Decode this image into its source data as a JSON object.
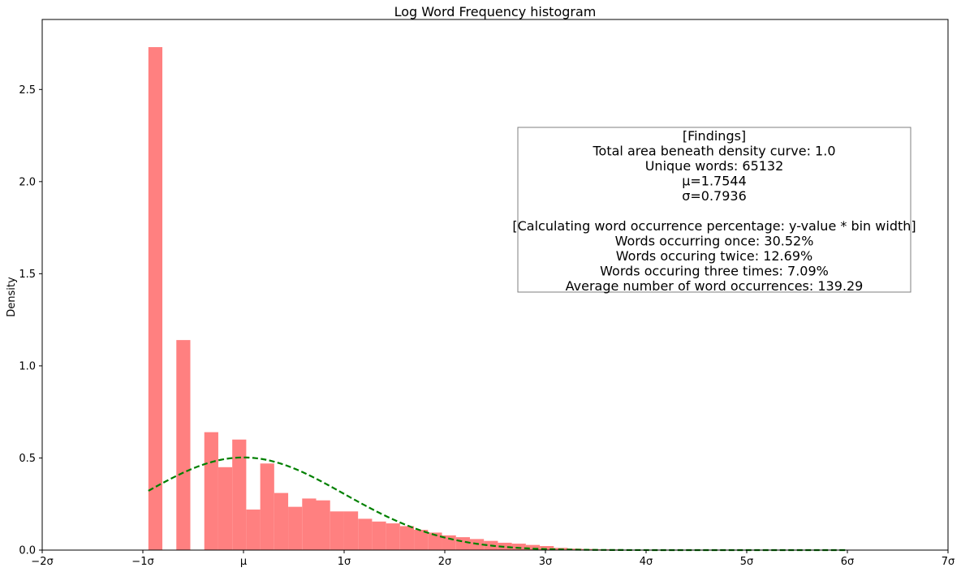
{
  "chart_data": {
    "type": "bar",
    "title": "Log Word Frequency histogram",
    "xlabel": "",
    "ylabel": "Density",
    "xlim": [
      -2,
      7
    ],
    "ylim": [
      0,
      2.88
    ],
    "x_ticks": [
      {
        "value": -2,
        "label": "−2σ"
      },
      {
        "value": -1,
        "label": "−1σ"
      },
      {
        "value": 0,
        "label": "μ"
      },
      {
        "value": 1,
        "label": "1σ"
      },
      {
        "value": 2,
        "label": "2σ"
      },
      {
        "value": 3,
        "label": "3σ"
      },
      {
        "value": 4,
        "label": "4σ"
      },
      {
        "value": 5,
        "label": "5σ"
      },
      {
        "value": 6,
        "label": "6σ"
      },
      {
        "value": 7,
        "label": "7σ"
      }
    ],
    "y_ticks": [
      {
        "value": 0.0,
        "label": "0.0"
      },
      {
        "value": 0.5,
        "label": "0.5"
      },
      {
        "value": 1.0,
        "label": "1.0"
      },
      {
        "value": 1.5,
        "label": "1.5"
      },
      {
        "value": 2.0,
        "label": "2.0"
      },
      {
        "value": 2.5,
        "label": "2.5"
      }
    ],
    "bar_color": "#ff8080",
    "curve_color": "#008000",
    "histogram": {
      "bin_start": -0.945,
      "bin_width": 0.1389,
      "values": [
        2.73,
        0,
        1.14,
        0,
        0.64,
        0.45,
        0.6,
        0.22,
        0.47,
        0.31,
        0.235,
        0.28,
        0.27,
        0.21,
        0.21,
        0.17,
        0.155,
        0.145,
        0.13,
        0.11,
        0.095,
        0.08,
        0.07,
        0.06,
        0.05,
        0.04,
        0.035,
        0.028,
        0.022,
        0.012,
        0.008,
        0.006,
        0.004,
        0.003,
        0.002,
        0.002,
        0.001,
        0.001,
        0.001,
        0.001,
        0.001,
        0.001,
        0.001,
        0.001,
        0.001,
        0.001,
        0.001,
        0.001,
        0.001,
        0.001
      ]
    },
    "density_curve": {
      "style": "dashed",
      "x_start": -0.945,
      "x_end": 6.0,
      "peak": 0.5027
    },
    "annotation": {
      "lines": [
        "[Findings]",
        "Total area beneath density curve: 1.0",
        "Unique words: 65132",
        "μ=1.7544",
        "σ=0.7936",
        "",
        "[Calculating word occurrence percentage: y-value * bin width]",
        "Words occurring once: 30.52%",
        "Words occuring twice: 12.69%",
        "Words occuring three times: 7.09%",
        "Average number of word occurrences: 139.29"
      ]
    }
  }
}
